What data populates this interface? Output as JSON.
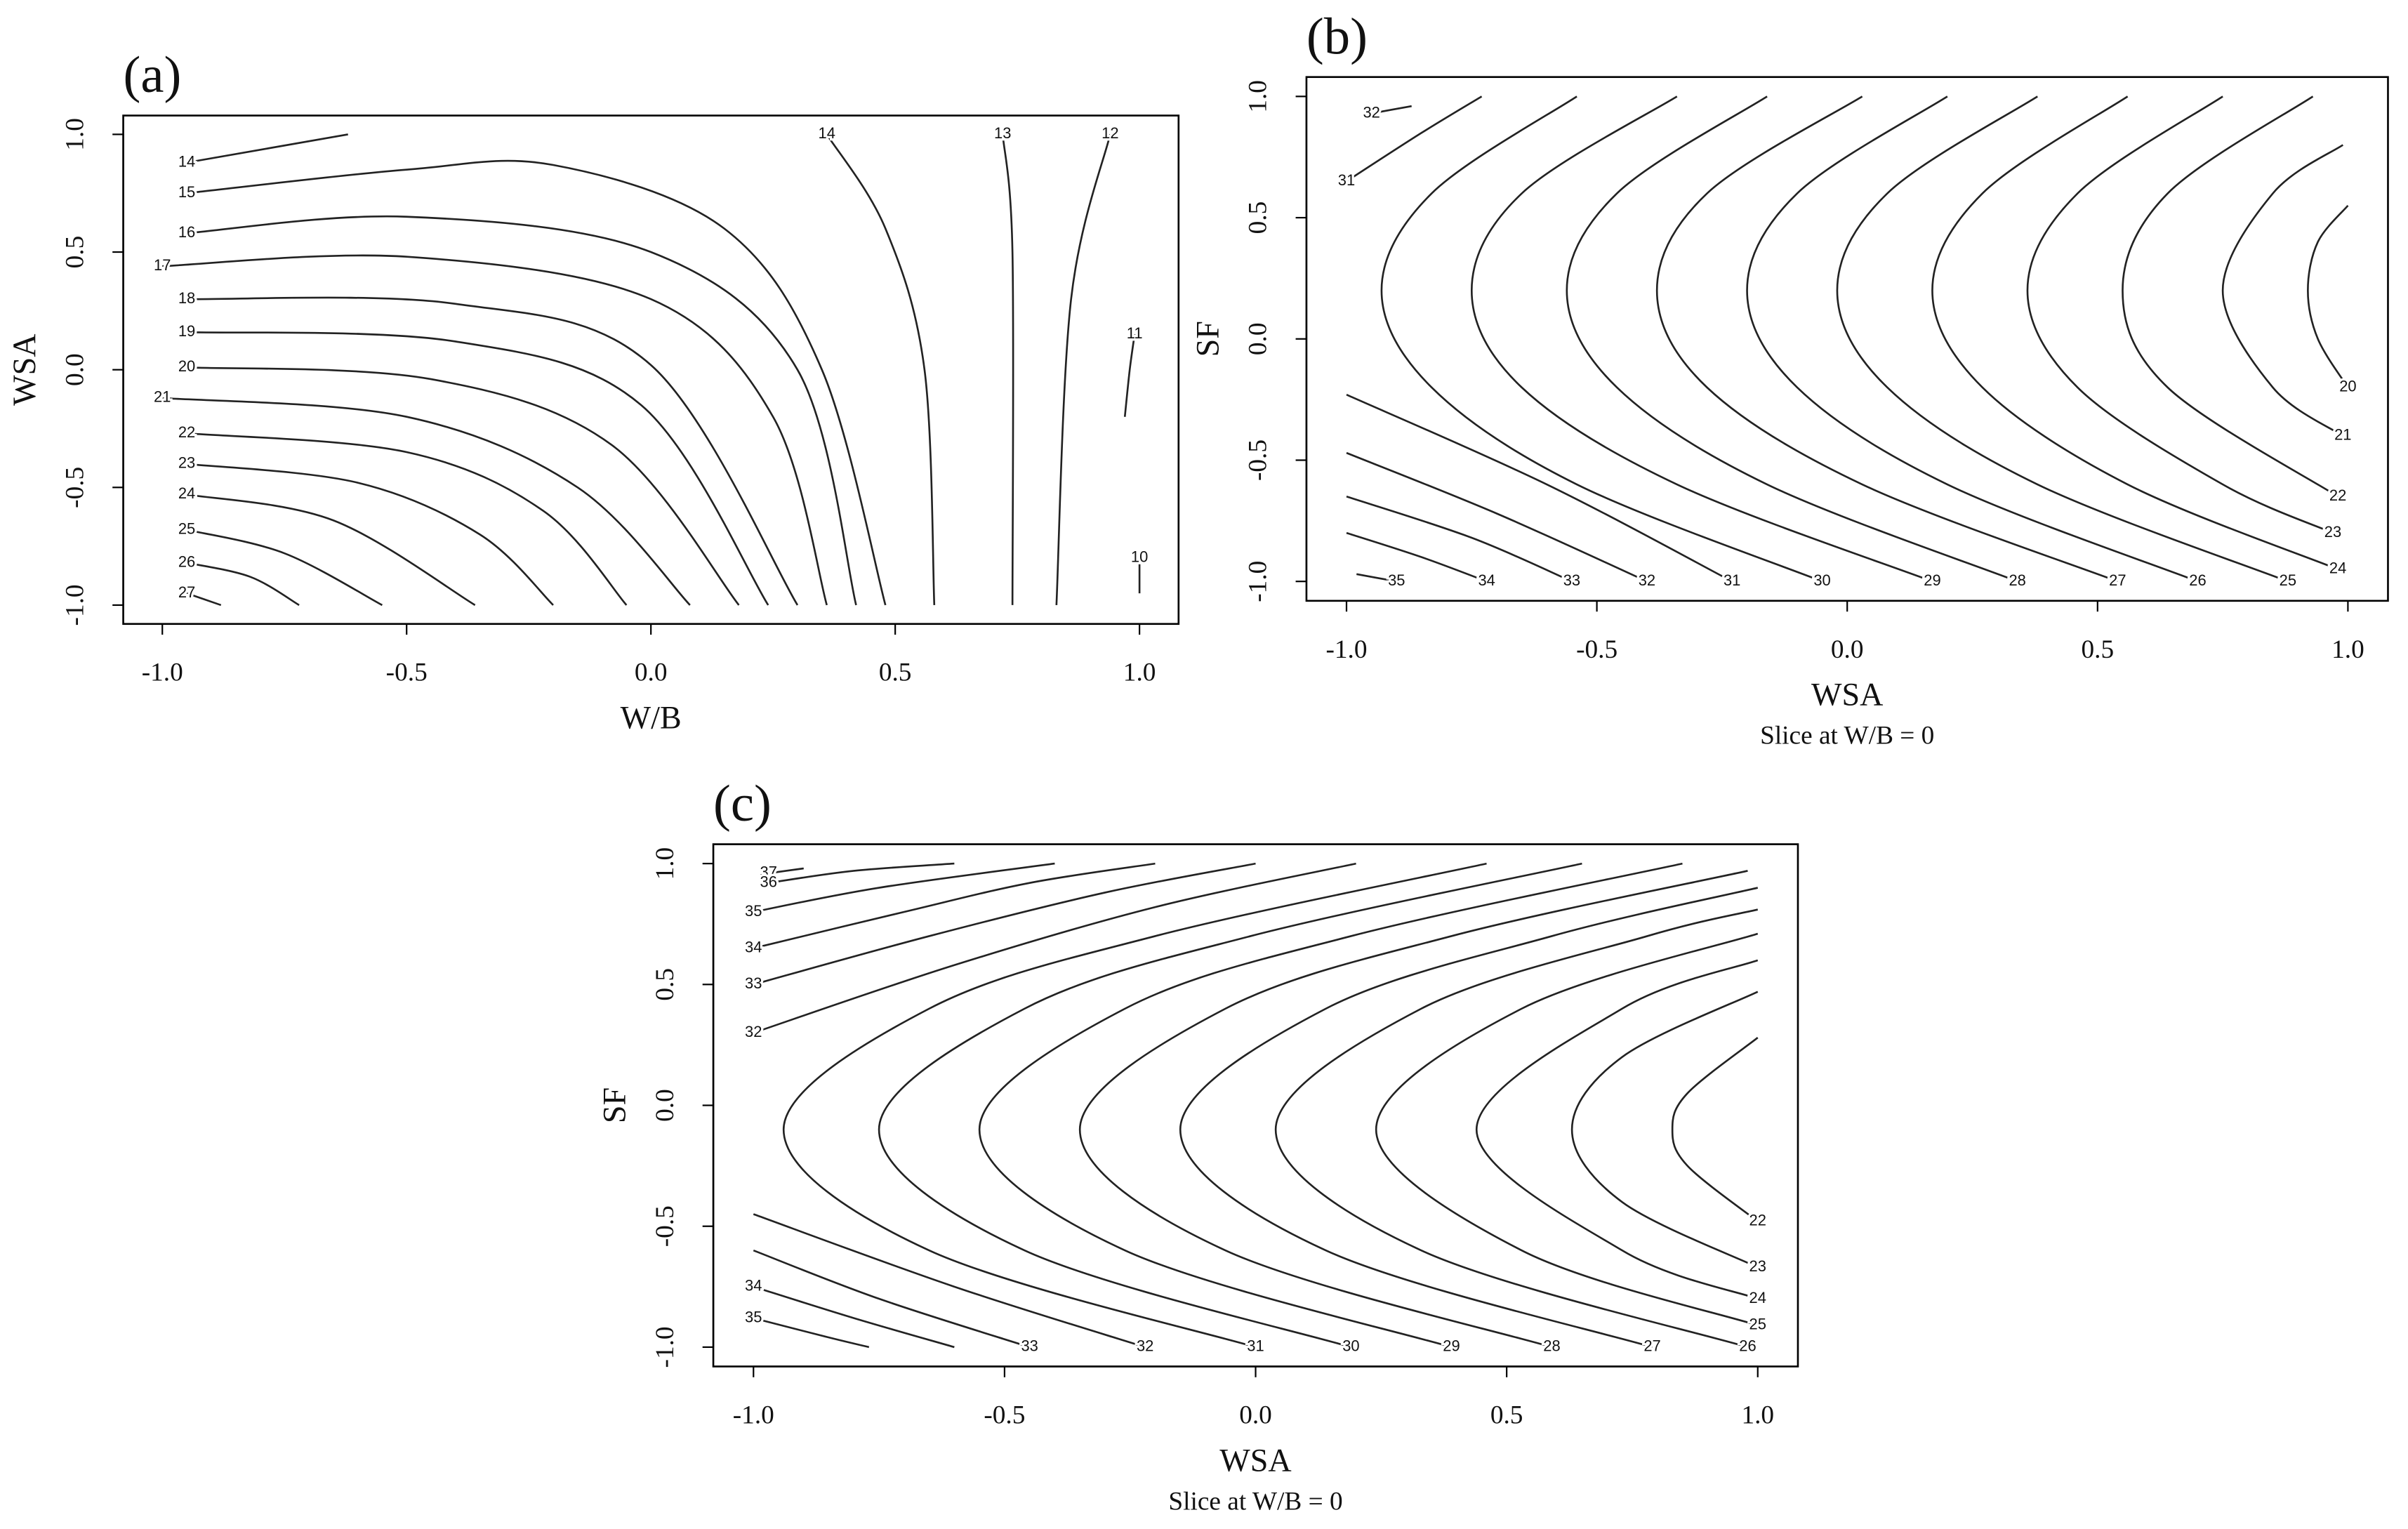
{
  "chart_data": [
    {
      "type": "contour",
      "title": "(a)",
      "x_label": "W/B",
      "y_label": "WSA",
      "xlim": [
        -1.08,
        1.08
      ],
      "ylim": [
        -1.08,
        1.08
      ],
      "xticks": [
        {
          "value": -1,
          "label": "-1.0"
        },
        {
          "value": -0.5,
          "label": "-0.5"
        },
        {
          "value": 0,
          "label": "0.0"
        },
        {
          "value": 0.5,
          "label": "0.5"
        },
        {
          "value": 1,
          "label": "1.0"
        }
      ],
      "yticks": [
        {
          "value": -1,
          "label": "-1.0"
        },
        {
          "value": -0.5,
          "label": "-0.5"
        },
        {
          "value": 0,
          "label": "0.0"
        },
        {
          "value": 0.5,
          "label": "0.5"
        },
        {
          "value": 1,
          "label": "1.0"
        }
      ],
      "series": [
        {
          "level": 14,
          "x": [
            -0.95,
            -0.62
          ],
          "y": [
            0.88,
            1.0
          ]
        },
        {
          "level": 15,
          "x": [
            -0.95,
            -0.5,
            -0.2,
            0.15,
            0.35,
            0.48
          ],
          "y": [
            0.75,
            0.85,
            0.87,
            0.6,
            0.0,
            -1.0
          ]
        },
        {
          "level": 16,
          "x": [
            -0.95,
            -0.5,
            0.0,
            0.3,
            0.42
          ],
          "y": [
            0.58,
            0.65,
            0.5,
            0.0,
            -1.0
          ]
        },
        {
          "level": 17,
          "x": [
            -1.0,
            -0.5,
            0.0,
            0.25,
            0.36
          ],
          "y": [
            0.44,
            0.48,
            0.3,
            -0.2,
            -1.0
          ]
        },
        {
          "level": 18,
          "x": [
            -0.95,
            -0.4,
            0.0,
            0.3
          ],
          "y": [
            0.3,
            0.28,
            0.02,
            -1.0
          ]
        },
        {
          "level": 19,
          "x": [
            -0.95,
            -0.4,
            -0.02,
            0.24
          ],
          "y": [
            0.16,
            0.12,
            -0.15,
            -1.0
          ]
        },
        {
          "level": 20,
          "x": [
            -0.95,
            -0.45,
            -0.08,
            0.18
          ],
          "y": [
            0.01,
            -0.04,
            -0.32,
            -1.0
          ]
        },
        {
          "level": 21,
          "x": [
            -1.0,
            -0.5,
            -0.15,
            0.08
          ],
          "y": [
            -0.12,
            -0.2,
            -0.5,
            -1.0
          ]
        },
        {
          "level": 22,
          "x": [
            -0.95,
            -0.5,
            -0.22,
            -0.05
          ],
          "y": [
            -0.27,
            -0.35,
            -0.6,
            -1.0
          ]
        },
        {
          "level": 23,
          "x": [
            -0.95,
            -0.6,
            -0.35,
            -0.2
          ],
          "y": [
            -0.4,
            -0.48,
            -0.7,
            -1.0
          ]
        },
        {
          "level": 24,
          "x": [
            -0.95,
            -0.65,
            -0.36
          ],
          "y": [
            -0.53,
            -0.64,
            -1.0
          ]
        },
        {
          "level": 25,
          "x": [
            -0.95,
            -0.75,
            -0.55
          ],
          "y": [
            -0.68,
            -0.78,
            -1.0
          ]
        },
        {
          "level": 26,
          "x": [
            -0.95,
            -0.82,
            -0.72
          ],
          "y": [
            -0.82,
            -0.88,
            -1.0
          ]
        },
        {
          "level": 27,
          "x": [
            -0.95,
            -0.88
          ],
          "y": [
            -0.95,
            -1.0
          ]
        },
        {
          "level": 14,
          "x": [
            0.36,
            0.48,
            0.56,
            0.58
          ],
          "y": [
            1.0,
            0.6,
            0.0,
            -1.0
          ]
        },
        {
          "level": 13,
          "x": [
            0.72,
            0.74,
            0.74
          ],
          "y": [
            1.0,
            0.5,
            -1.0
          ]
        },
        {
          "level": 12,
          "x": [
            0.94,
            0.86,
            0.83
          ],
          "y": [
            1.0,
            0.3,
            -1.0
          ]
        },
        {
          "level": 11,
          "x": [
            0.99,
            0.98,
            0.97
          ],
          "y": [
            0.15,
            0.0,
            -0.2
          ]
        },
        {
          "level": 10,
          "x": [
            1.0,
            1.0
          ],
          "y": [
            -0.8,
            -0.95
          ]
        }
      ]
    },
    {
      "type": "contour",
      "title": "(b)",
      "x_label": "WSA",
      "y_label": "SF",
      "subtitle": "Slice at W/B = 0",
      "xlim": [
        -1.08,
        1.08
      ],
      "ylim": [
        -1.08,
        1.08
      ],
      "xticks": [
        {
          "value": -1,
          "label": "-1.0"
        },
        {
          "value": -0.5,
          "label": "-0.5"
        },
        {
          "value": 0,
          "label": "0.0"
        },
        {
          "value": 0.5,
          "label": "0.5"
        },
        {
          "value": 1,
          "label": "1.0"
        }
      ],
      "yticks": [
        {
          "value": -1,
          "label": "-1.0"
        },
        {
          "value": -0.5,
          "label": "-0.5"
        },
        {
          "value": 0,
          "label": "0.0"
        },
        {
          "value": 0.5,
          "label": "0.5"
        },
        {
          "value": 1,
          "label": "1.0"
        }
      ],
      "series": [
        {
          "level": 32,
          "x": [
            -0.95,
            -0.87
          ],
          "y": [
            0.93,
            0.96
          ]
        },
        {
          "level": 31,
          "x": [
            -1.0,
            -0.85,
            -0.73
          ],
          "y": [
            0.65,
            0.85,
            1.0
          ]
        },
        {
          "level": 35,
          "x": [
            -0.9,
            -0.98
          ],
          "y": [
            -1.0,
            -0.97
          ]
        },
        {
          "level": 34,
          "x": [
            -0.72,
            -0.85,
            -1.0
          ],
          "y": [
            -1.0,
            -0.9,
            -0.8
          ]
        },
        {
          "level": 33,
          "x": [
            -0.55,
            -0.75,
            -1.0
          ],
          "y": [
            -1.0,
            -0.82,
            -0.65
          ]
        },
        {
          "level": 32,
          "x": [
            -0.4,
            -0.7,
            -1.0
          ],
          "y": [
            -1.0,
            -0.72,
            -0.47
          ]
        },
        {
          "level": 31,
          "x": [
            -0.23,
            -0.6,
            -1.0
          ],
          "y": [
            -1.0,
            -0.6,
            -0.23
          ]
        },
        {
          "level": 30,
          "x": [
            -0.05,
            -0.54,
            -0.83,
            -0.93,
            -0.83,
            -0.54
          ],
          "y": [
            -1.0,
            -0.6,
            -0.2,
            0.2,
            0.6,
            1.0
          ]
        },
        {
          "level": 29,
          "x": [
            0.17,
            -0.34,
            -0.65,
            -0.75,
            -0.65,
            -0.34
          ],
          "y": [
            -1.0,
            -0.6,
            -0.2,
            0.2,
            0.6,
            1.0
          ]
        },
        {
          "level": 28,
          "x": [
            0.34,
            -0.16,
            -0.46,
            -0.56,
            -0.46,
            -0.16
          ],
          "y": [
            -1.0,
            -0.6,
            -0.2,
            0.2,
            0.6,
            1.0
          ]
        },
        {
          "level": 27,
          "x": [
            0.54,
            0.03,
            -0.28,
            -0.38,
            -0.28,
            0.03
          ],
          "y": [
            -1.0,
            -0.6,
            -0.2,
            0.2,
            0.6,
            1.0
          ]
        },
        {
          "level": 26,
          "x": [
            0.7,
            0.2,
            -0.1,
            -0.2,
            -0.1,
            0.2
          ],
          "y": [
            -1.0,
            -0.6,
            -0.2,
            0.2,
            0.6,
            1.0
          ]
        },
        {
          "level": 25,
          "x": [
            0.88,
            0.38,
            0.08,
            -0.02,
            0.08,
            0.38
          ],
          "y": [
            -1.0,
            -0.6,
            -0.2,
            0.2,
            0.6,
            1.0
          ]
        },
        {
          "level": 24,
          "x": [
            0.98,
            0.56,
            0.27,
            0.17,
            0.27,
            0.56
          ],
          "y": [
            -0.95,
            -0.6,
            -0.2,
            0.2,
            0.6,
            1.0
          ]
        },
        {
          "level": 23,
          "x": [
            0.97,
            0.75,
            0.46,
            0.36,
            0.46,
            0.75
          ],
          "y": [
            -0.8,
            -0.6,
            -0.2,
            0.2,
            0.6,
            1.0
          ]
        },
        {
          "level": 22,
          "x": [
            0.98,
            0.64,
            0.55,
            0.64,
            0.93
          ],
          "y": [
            -0.65,
            -0.2,
            0.2,
            0.6,
            1.0
          ]
        },
        {
          "level": 21,
          "x": [
            0.99,
            0.85,
            0.75,
            0.85,
            0.99
          ],
          "y": [
            -0.4,
            -0.2,
            0.2,
            0.6,
            0.8
          ]
        },
        {
          "level": 20,
          "x": [
            1.0,
            0.94,
            0.92,
            0.94,
            1.0
          ],
          "y": [
            -0.2,
            0.0,
            0.2,
            0.4,
            0.55
          ]
        }
      ]
    },
    {
      "type": "contour",
      "title": "(c)",
      "x_label": "WSA",
      "y_label": "SF",
      "subtitle": "Slice at W/B = 0",
      "xlim": [
        -1.08,
        1.08
      ],
      "ylim": [
        -1.08,
        1.08
      ],
      "xticks": [
        {
          "value": -1,
          "label": "-1.0"
        },
        {
          "value": -0.5,
          "label": "-0.5"
        },
        {
          "value": 0,
          "label": "0.0"
        },
        {
          "value": 0.5,
          "label": "0.5"
        },
        {
          "value": 1,
          "label": "1.0"
        }
      ],
      "yticks": [
        {
          "value": -1,
          "label": "-1.0"
        },
        {
          "value": -0.5,
          "label": "-0.5"
        },
        {
          "value": 0,
          "label": "0.0"
        },
        {
          "value": 0.5,
          "label": "0.5"
        },
        {
          "value": 1,
          "label": "1.0"
        }
      ],
      "series": [
        {
          "level": 37,
          "x": [
            -0.97,
            -0.9
          ],
          "y": [
            0.96,
            0.98
          ]
        },
        {
          "level": 36,
          "x": [
            -0.97,
            -0.8,
            -0.6
          ],
          "y": [
            0.92,
            0.97,
            1.0
          ]
        },
        {
          "level": 35,
          "x": [
            -1.0,
            -0.75,
            -0.4
          ],
          "y": [
            0.8,
            0.9,
            1.0
          ]
        },
        {
          "level": 34,
          "x": [
            -1.0,
            -0.7,
            -0.45,
            -0.2
          ],
          "y": [
            0.65,
            0.8,
            0.92,
            1.0
          ]
        },
        {
          "level": 33,
          "x": [
            -1.0,
            -0.65,
            -0.3,
            0.0
          ],
          "y": [
            0.5,
            0.7,
            0.88,
            1.0
          ]
        },
        {
          "level": 32,
          "x": [
            -1.0,
            -0.6,
            -0.2,
            0.2
          ],
          "y": [
            0.3,
            0.58,
            0.82,
            1.0
          ]
        },
        {
          "level": 35,
          "x": [
            -1.0,
            -0.85,
            -0.77
          ],
          "y": [
            -0.88,
            -0.96,
            -1.0
          ]
        },
        {
          "level": 34,
          "x": [
            -1.0,
            -0.8,
            -0.6
          ],
          "y": [
            -0.75,
            -0.88,
            -1.0
          ]
        },
        {
          "level": 33,
          "x": [
            -0.45,
            -0.75,
            -1.0
          ],
          "y": [
            -1.0,
            -0.8,
            -0.6
          ]
        },
        {
          "level": 32,
          "x": [
            -0.22,
            -0.6,
            -1.0
          ],
          "y": [
            -1.0,
            -0.75,
            -0.45
          ]
        },
        {
          "level": 31,
          "x": [
            0.0,
            -0.65,
            -0.94,
            -0.65,
            -0.2,
            0.46
          ],
          "y": [
            -1.0,
            -0.6,
            -0.1,
            0.4,
            0.7,
            1.0
          ]
        },
        {
          "level": 30,
          "x": [
            0.19,
            -0.46,
            -0.75,
            -0.46,
            -0.01,
            0.65
          ],
          "y": [
            -1.0,
            -0.6,
            -0.1,
            0.4,
            0.7,
            1.0
          ]
        },
        {
          "level": 29,
          "x": [
            0.39,
            -0.26,
            -0.55,
            -0.26,
            0.19,
            0.85
          ],
          "y": [
            -1.0,
            -0.6,
            -0.1,
            0.4,
            0.7,
            1.0
          ]
        },
        {
          "level": 28,
          "x": [
            0.59,
            -0.06,
            -0.35,
            -0.06,
            0.39,
            0.98
          ],
          "y": [
            -1.0,
            -0.6,
            -0.1,
            0.4,
            0.7,
            0.97
          ]
        },
        {
          "level": 27,
          "x": [
            0.79,
            0.14,
            -0.15,
            0.14,
            0.59,
            1.0
          ],
          "y": [
            -1.0,
            -0.6,
            -0.1,
            0.4,
            0.7,
            0.9
          ]
        },
        {
          "level": 26,
          "x": [
            0.98,
            0.33,
            0.04,
            0.33,
            0.78,
            1.0
          ],
          "y": [
            -1.0,
            -0.6,
            -0.1,
            0.4,
            0.7,
            0.81
          ]
        },
        {
          "level": 25,
          "x": [
            1.0,
            0.53,
            0.24,
            0.53,
            1.0
          ],
          "y": [
            -0.91,
            -0.6,
            -0.1,
            0.4,
            0.71
          ]
        },
        {
          "level": 24,
          "x": [
            1.0,
            0.73,
            0.44,
            0.73,
            1.0
          ],
          "y": [
            -0.8,
            -0.6,
            -0.1,
            0.4,
            0.6
          ]
        },
        {
          "level": 23,
          "x": [
            1.0,
            0.73,
            0.63,
            0.73,
            1.0
          ],
          "y": [
            -0.67,
            -0.4,
            -0.1,
            0.2,
            0.47
          ]
        },
        {
          "level": 22,
          "x": [
            1.0,
            0.86,
            0.83,
            0.86,
            1.0
          ],
          "y": [
            -0.48,
            -0.25,
            -0.1,
            0.05,
            0.28
          ]
        }
      ]
    }
  ]
}
